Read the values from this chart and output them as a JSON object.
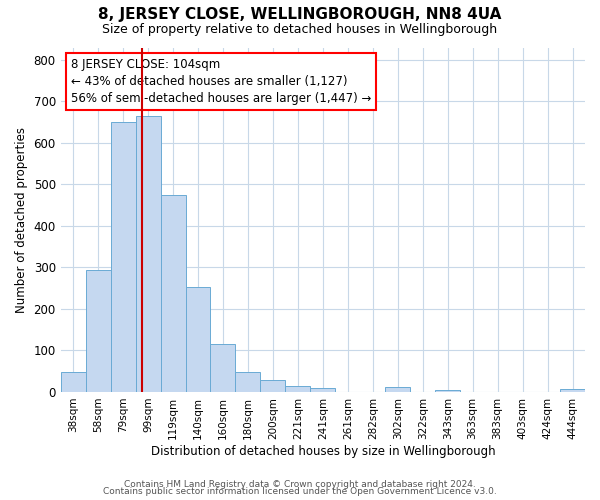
{
  "title": "8, JERSEY CLOSE, WELLINGBOROUGH, NN8 4UA",
  "subtitle": "Size of property relative to detached houses in Wellingborough",
  "xlabel": "Distribution of detached houses by size in Wellingborough",
  "ylabel": "Number of detached properties",
  "categories": [
    "38sqm",
    "58sqm",
    "79sqm",
    "99sqm",
    "119sqm",
    "140sqm",
    "160sqm",
    "180sqm",
    "200sqm",
    "221sqm",
    "241sqm",
    "261sqm",
    "282sqm",
    "302sqm",
    "322sqm",
    "343sqm",
    "363sqm",
    "383sqm",
    "403sqm",
    "424sqm",
    "444sqm"
  ],
  "bar_heights": [
    48,
    295,
    650,
    665,
    475,
    252,
    115,
    48,
    28,
    14,
    10,
    0,
    0,
    12,
    0,
    5,
    0,
    0,
    0,
    0,
    7
  ],
  "bar_color": "#c5d8f0",
  "bar_edge_color": "#6aaad4",
  "vline_color": "#cc0000",
  "annotation_title": "8 JERSEY CLOSE: 104sqm",
  "annotation_line1": "← 43% of detached houses are smaller (1,127)",
  "annotation_line2": "56% of semi-detached houses are larger (1,447) →",
  "ylim": [
    0,
    830
  ],
  "yticks": [
    0,
    100,
    200,
    300,
    400,
    500,
    600,
    700,
    800
  ],
  "footer1": "Contains HM Land Registry data © Crown copyright and database right 2024.",
  "footer2": "Contains public sector information licensed under the Open Government Licence v3.0.",
  "bg_color": "#ffffff",
  "grid_color": "#c8d8e8"
}
